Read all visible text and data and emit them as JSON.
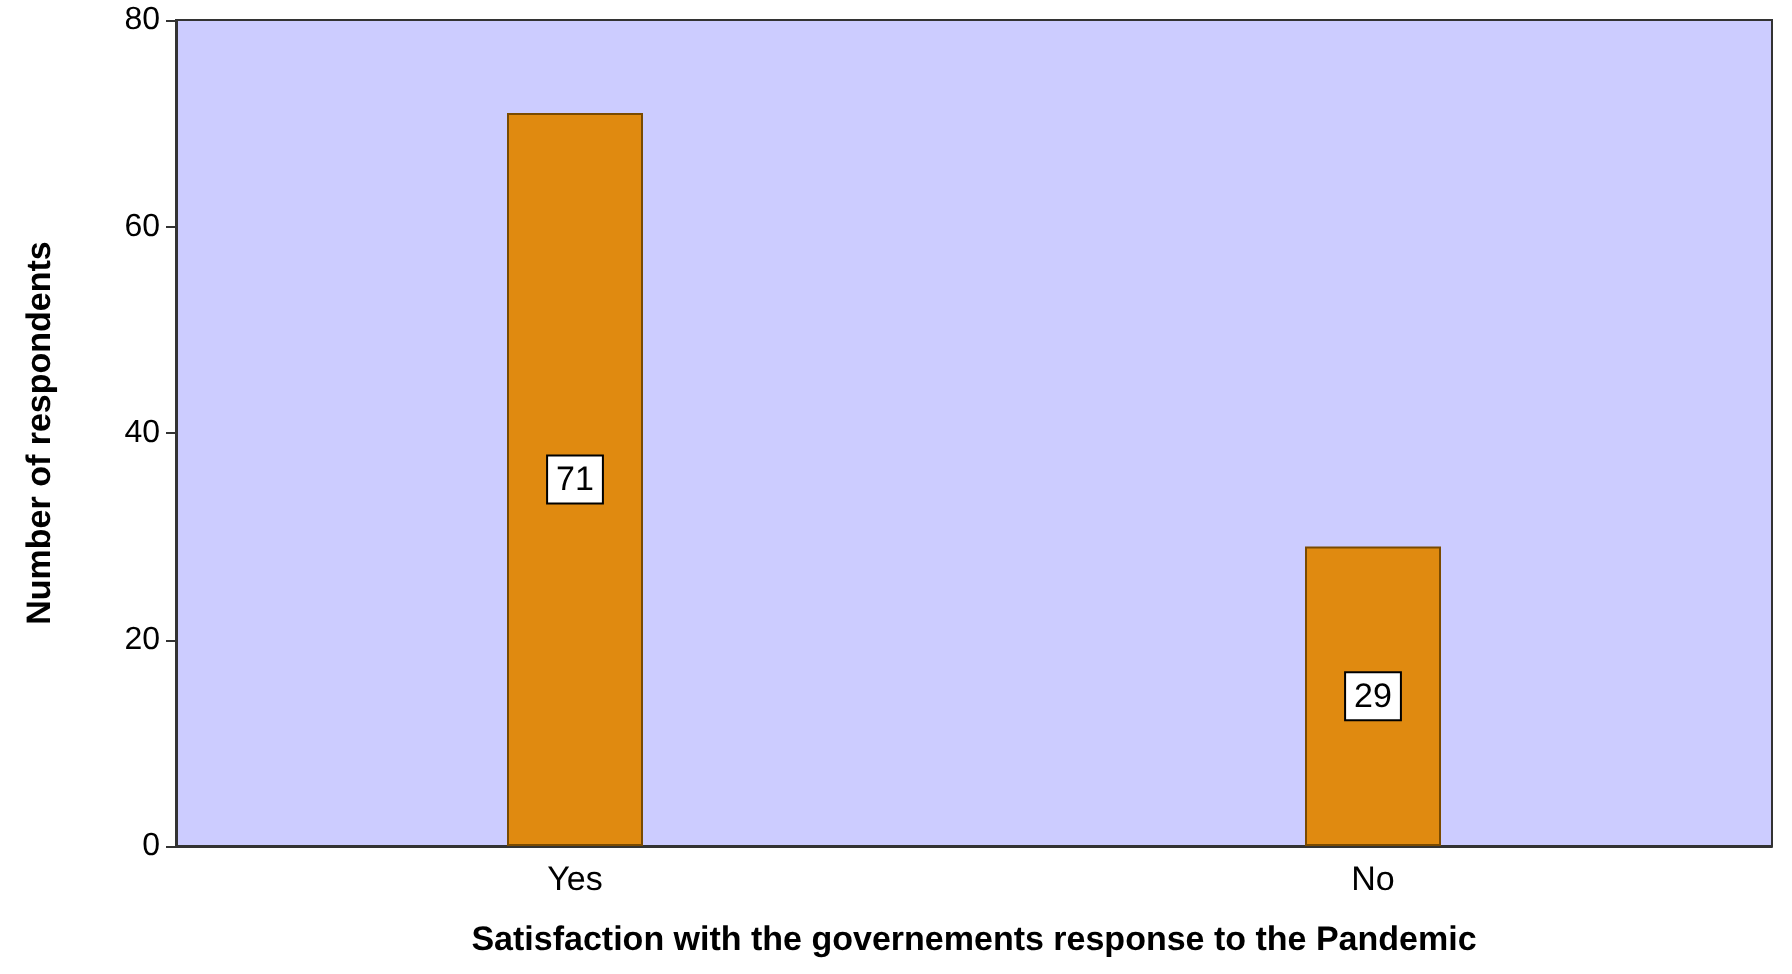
{
  "chart_data": {
    "type": "bar",
    "xlabel": "Satisfaction with the governements response to the Pandemic",
    "ylabel": "Number of respondents",
    "categories": [
      "Yes",
      "No"
    ],
    "values": [
      71,
      29
    ],
    "color": "#e08a10",
    "ylim": [
      0,
      80
    ],
    "yticks": [
      0,
      20,
      40,
      60,
      80
    ],
    "grid": false,
    "data_labels": true
  }
}
